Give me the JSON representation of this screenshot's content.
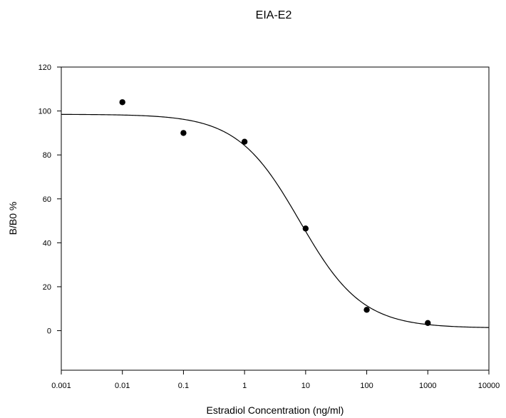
{
  "chart_data": {
    "type": "scatter",
    "title": "EIA-E2",
    "xlabel": "Estradiol Concentration (ng/ml)",
    "ylabel": "B/B0 %",
    "x_scale": "log",
    "xlim": [
      0.001,
      10000
    ],
    "ylim": [
      -18,
      120
    ],
    "x_ticks": [
      0.001,
      0.01,
      0.1,
      1,
      10,
      100,
      1000,
      10000
    ],
    "x_tick_labels": [
      "0.001",
      "0.01",
      "0.1",
      "1",
      "10",
      "100",
      "1000",
      "10000"
    ],
    "y_ticks": [
      0,
      20,
      40,
      60,
      80,
      100,
      120
    ],
    "y_tick_labels": [
      "0",
      "20",
      "40",
      "60",
      "80",
      "100",
      "120"
    ],
    "grid": false,
    "series": [
      {
        "kind": "points",
        "x": [
          0.01,
          0.1,
          1,
          10,
          100,
          1000
        ],
        "y": [
          104,
          90,
          86,
          46.5,
          9.5,
          3.5
        ],
        "color": "#000000"
      },
      {
        "kind": "fit-curve",
        "model": "four-parameter logistic",
        "params": {
          "top": 98.5,
          "bottom": 1.2,
          "ec50": 8.0,
          "hill": 0.85
        },
        "color": "#000000"
      }
    ]
  }
}
